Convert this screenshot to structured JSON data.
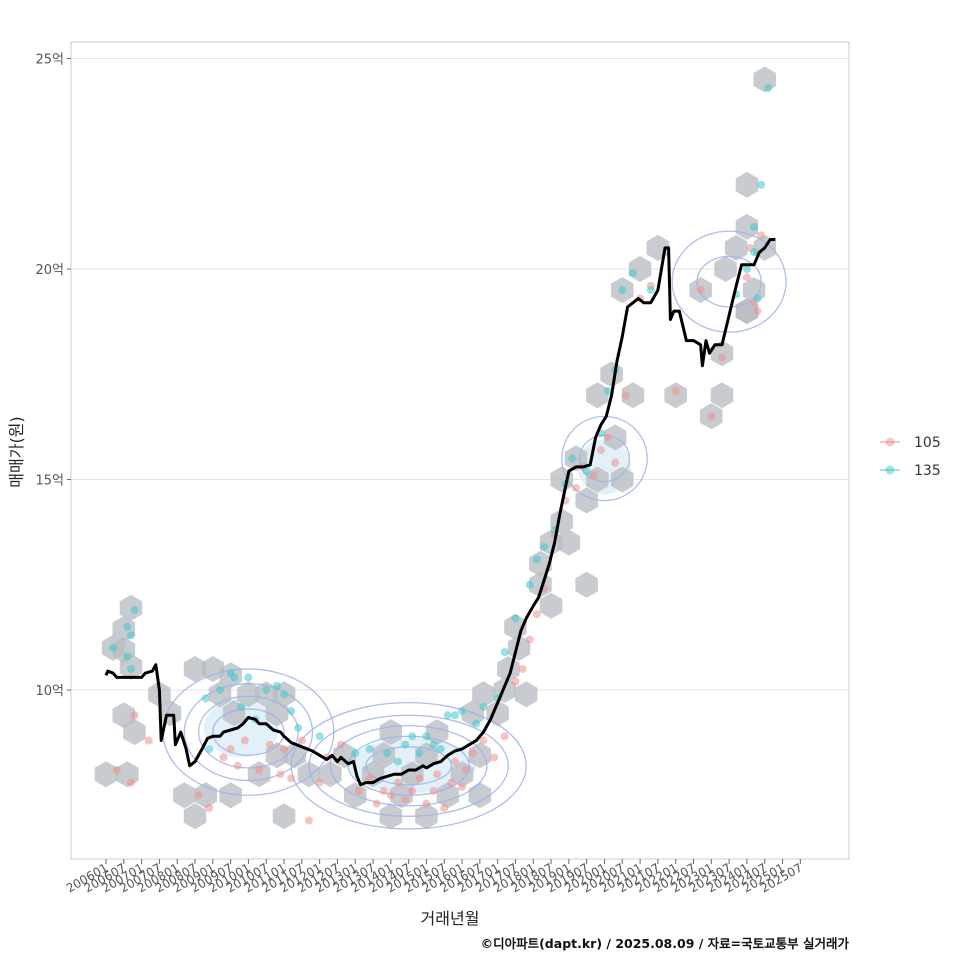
{
  "chart_data": {
    "type": "scatter",
    "title": "",
    "xlabel": "거래년월",
    "ylabel": "매매가(원)",
    "caption": "©디아파트(dapt.kr) / 2025.08.09 / 자료=국토교통부 실거래가",
    "y_unit_suffix": "억",
    "ylim": [
      6.2,
      25.5
    ],
    "y_ticks": [
      {
        "value": 10,
        "label": "10억"
      },
      {
        "value": 15,
        "label": "15억"
      },
      {
        "value": 20,
        "label": "20억"
      },
      {
        "value": 25,
        "label": "25억"
      }
    ],
    "x_range": [
      2006.0,
      2025.8
    ],
    "x_ticks": [
      "200601",
      "200607",
      "200701",
      "200707",
      "200801",
      "200807",
      "200901",
      "200907",
      "201001",
      "201007",
      "201101",
      "201107",
      "201201",
      "201207",
      "201301",
      "201307",
      "201401",
      "201407",
      "201501",
      "201507",
      "201601",
      "201607",
      "201701",
      "201707",
      "201801",
      "201807",
      "201901",
      "201907",
      "202001",
      "202007",
      "202101",
      "202107",
      "202201",
      "202207",
      "202301",
      "202307",
      "202401",
      "202407",
      "202501",
      "202507"
    ],
    "grid": true,
    "legend": {
      "placement": "right",
      "entries": [
        {
          "label": "105",
          "color": "#f08f8f"
        },
        {
          "label": "135",
          "color": "#3fc9cc"
        }
      ]
    },
    "colors": {
      "trend_line": "#000000",
      "hexbin": "#b8bcc2",
      "contour": "#9fb3ea",
      "density_fill": "#d6e9f5"
    },
    "trend_line": [
      [
        2006.0,
        10.35
      ],
      [
        2006.05,
        10.45
      ],
      [
        2006.2,
        10.4
      ],
      [
        2006.3,
        10.3
      ],
      [
        2006.5,
        10.3
      ],
      [
        2006.8,
        10.3
      ],
      [
        2007.0,
        10.3
      ],
      [
        2007.1,
        10.4
      ],
      [
        2007.3,
        10.45
      ],
      [
        2007.4,
        10.6
      ],
      [
        2007.5,
        10.0
      ],
      [
        2007.55,
        8.8
      ],
      [
        2007.7,
        9.4
      ],
      [
        2007.9,
        9.4
      ],
      [
        2007.95,
        8.7
      ],
      [
        2008.1,
        9.0
      ],
      [
        2008.25,
        8.6
      ],
      [
        2008.35,
        8.2
      ],
      [
        2008.5,
        8.3
      ],
      [
        2008.7,
        8.6
      ],
      [
        2008.85,
        8.85
      ],
      [
        2009.0,
        8.9
      ],
      [
        2009.2,
        8.9
      ],
      [
        2009.3,
        9.0
      ],
      [
        2009.5,
        9.05
      ],
      [
        2009.7,
        9.1
      ],
      [
        2009.85,
        9.2
      ],
      [
        2010.0,
        9.35
      ],
      [
        2010.2,
        9.3
      ],
      [
        2010.3,
        9.2
      ],
      [
        2010.5,
        9.2
      ],
      [
        2010.7,
        9.05
      ],
      [
        2010.9,
        9.0
      ],
      [
        2011.0,
        8.9
      ],
      [
        2011.2,
        8.75
      ],
      [
        2011.5,
        8.65
      ],
      [
        2011.8,
        8.55
      ],
      [
        2012.0,
        8.45
      ],
      [
        2012.2,
        8.35
      ],
      [
        2012.35,
        8.45
      ],
      [
        2012.5,
        8.3
      ],
      [
        2012.6,
        8.4
      ],
      [
        2012.8,
        8.25
      ],
      [
        2012.95,
        8.3
      ],
      [
        2013.05,
        7.95
      ],
      [
        2013.15,
        7.75
      ],
      [
        2013.3,
        7.8
      ],
      [
        2013.5,
        7.8
      ],
      [
        2013.7,
        7.9
      ],
      [
        2013.9,
        7.95
      ],
      [
        2014.1,
        8.0
      ],
      [
        2014.3,
        8.0
      ],
      [
        2014.5,
        8.1
      ],
      [
        2014.7,
        8.1
      ],
      [
        2014.9,
        8.2
      ],
      [
        2015.0,
        8.15
      ],
      [
        2015.2,
        8.25
      ],
      [
        2015.4,
        8.3
      ],
      [
        2015.6,
        8.45
      ],
      [
        2015.8,
        8.55
      ],
      [
        2016.0,
        8.6
      ],
      [
        2016.2,
        8.7
      ],
      [
        2016.4,
        8.8
      ],
      [
        2016.6,
        9.0
      ],
      [
        2016.8,
        9.3
      ],
      [
        2017.0,
        9.7
      ],
      [
        2017.2,
        10.1
      ],
      [
        2017.35,
        10.4
      ],
      [
        2017.5,
        10.9
      ],
      [
        2017.65,
        11.4
      ],
      [
        2017.8,
        11.7
      ],
      [
        2018.0,
        12.0
      ],
      [
        2018.15,
        12.2
      ],
      [
        2018.3,
        12.6
      ],
      [
        2018.45,
        13.0
      ],
      [
        2018.6,
        13.5
      ],
      [
        2018.75,
        14.2
      ],
      [
        2018.9,
        14.8
      ],
      [
        2019.0,
        15.2
      ],
      [
        2019.2,
        15.3
      ],
      [
        2019.4,
        15.3
      ],
      [
        2019.6,
        15.35
      ],
      [
        2019.75,
        16.0
      ],
      [
        2019.9,
        16.3
      ],
      [
        2020.05,
        16.5
      ],
      [
        2020.2,
        17.0
      ],
      [
        2020.35,
        17.8
      ],
      [
        2020.5,
        18.4
      ],
      [
        2020.65,
        19.1
      ],
      [
        2020.8,
        19.2
      ],
      [
        2020.95,
        19.3
      ],
      [
        2021.1,
        19.2
      ],
      [
        2021.3,
        19.2
      ],
      [
        2021.5,
        19.5
      ],
      [
        2021.7,
        20.5
      ],
      [
        2021.8,
        20.5
      ],
      [
        2021.85,
        18.8
      ],
      [
        2021.95,
        19.0
      ],
      [
        2022.1,
        19.0
      ],
      [
        2022.3,
        18.3
      ],
      [
        2022.5,
        18.3
      ],
      [
        2022.7,
        18.2
      ],
      [
        2022.75,
        17.7
      ],
      [
        2022.85,
        18.3
      ],
      [
        2022.95,
        18.0
      ],
      [
        2023.1,
        18.2
      ],
      [
        2023.3,
        18.2
      ],
      [
        2023.5,
        18.9
      ],
      [
        2023.7,
        19.6
      ],
      [
        2023.85,
        20.1
      ],
      [
        2024.0,
        20.1
      ],
      [
        2024.2,
        20.1
      ],
      [
        2024.35,
        20.4
      ],
      [
        2024.5,
        20.5
      ],
      [
        2024.65,
        20.7
      ],
      [
        2024.8,
        20.7
      ]
    ],
    "hexbins": [
      [
        2006.2,
        11.0
      ],
      [
        2006.5,
        11.45
      ],
      [
        2006.7,
        11.95
      ],
      [
        2006.5,
        10.95
      ],
      [
        2006.7,
        10.55
      ],
      [
        2006.0,
        8.0
      ],
      [
        2006.6,
        8.0
      ],
      [
        2006.5,
        9.4
      ],
      [
        2006.8,
        9.0
      ],
      [
        2007.5,
        9.9
      ],
      [
        2007.8,
        9.45
      ],
      [
        2008.5,
        10.5
      ],
      [
        2009.0,
        10.5
      ],
      [
        2009.5,
        10.35
      ],
      [
        2009.2,
        9.9
      ],
      [
        2009.6,
        9.45
      ],
      [
        2010.0,
        9.9
      ],
      [
        2010.5,
        9.9
      ],
      [
        2010.8,
        9.45
      ],
      [
        2011.0,
        9.9
      ],
      [
        2008.2,
        7.5
      ],
      [
        2008.5,
        7.0
      ],
      [
        2008.8,
        7.5
      ],
      [
        2009.5,
        7.5
      ],
      [
        2010.3,
        8.0
      ],
      [
        2010.8,
        8.45
      ],
      [
        2011.3,
        8.45
      ],
      [
        2011.0,
        7.0
      ],
      [
        2011.7,
        8.0
      ],
      [
        2012.3,
        8.0
      ],
      [
        2012.7,
        8.45
      ],
      [
        2013.0,
        7.5
      ],
      [
        2013.5,
        8.0
      ],
      [
        2013.8,
        8.45
      ],
      [
        2014.0,
        9.0
      ],
      [
        2014.3,
        7.5
      ],
      [
        2014.6,
        8.0
      ],
      [
        2014.0,
        7.0
      ],
      [
        2015.0,
        8.45
      ],
      [
        2015.3,
        9.0
      ],
      [
        2015.0,
        7.0
      ],
      [
        2015.6,
        7.5
      ],
      [
        2016.0,
        8.0
      ],
      [
        2016.5,
        8.45
      ],
      [
        2016.5,
        7.5
      ],
      [
        2016.3,
        9.45
      ],
      [
        2016.6,
        9.9
      ],
      [
        2017.0,
        9.45
      ],
      [
        2017.3,
        10.5
      ],
      [
        2017.6,
        11.0
      ],
      [
        2017.5,
        11.5
      ],
      [
        2017.2,
        10.0
      ],
      [
        2017.8,
        9.9
      ],
      [
        2018.2,
        13.0
      ],
      [
        2018.5,
        13.5
      ],
      [
        2018.8,
        14.0
      ],
      [
        2018.2,
        12.5
      ],
      [
        2018.5,
        12.0
      ],
      [
        2018.8,
        15.0
      ],
      [
        2019.2,
        15.5
      ],
      [
        2019.0,
        13.5
      ],
      [
        2019.5,
        14.5
      ],
      [
        2019.5,
        12.5
      ],
      [
        2019.8,
        15.0
      ],
      [
        2020.3,
        16.0
      ],
      [
        2019.8,
        17.0
      ],
      [
        2020.2,
        17.5
      ],
      [
        2020.5,
        15.0
      ],
      [
        2020.8,
        17.0
      ],
      [
        2020.5,
        19.5
      ],
      [
        2021.0,
        20.0
      ],
      [
        2021.5,
        20.5
      ],
      [
        2022.0,
        17.0
      ],
      [
        2022.7,
        19.5
      ],
      [
        2023.0,
        16.5
      ],
      [
        2023.3,
        17.0
      ],
      [
        2023.3,
        18.0
      ],
      [
        2023.4,
        20.0
      ],
      [
        2023.7,
        20.5
      ],
      [
        2024.0,
        21.0
      ],
      [
        2024.0,
        22.0
      ],
      [
        2024.2,
        19.5
      ],
      [
        2024.0,
        19.0
      ],
      [
        2024.0,
        19.0
      ],
      [
        2024.5,
        24.5
      ],
      [
        2024.5,
        20.5
      ]
    ],
    "density_fills": [
      [
        2009.8,
        9.1,
        1.05,
        0.7
      ],
      [
        2014.6,
        8.2,
        1.8,
        0.65
      ],
      [
        2020.0,
        15.3,
        0.75,
        0.65
      ]
    ],
    "contours": [
      [
        2010.0,
        9.0,
        1.0,
        0.55
      ],
      [
        2010.0,
        9.0,
        1.4,
        0.85
      ],
      [
        2010.0,
        9.0,
        1.8,
        1.15
      ],
      [
        2010.0,
        9.0,
        2.4,
        1.5
      ],
      [
        2014.5,
        8.2,
        1.2,
        0.45
      ],
      [
        2014.5,
        8.2,
        1.7,
        0.7
      ],
      [
        2014.5,
        8.2,
        2.2,
        0.95
      ],
      [
        2014.5,
        8.2,
        2.8,
        1.2
      ],
      [
        2014.5,
        8.2,
        3.3,
        1.5
      ],
      [
        2020.0,
        15.5,
        0.7,
        0.55
      ],
      [
        2020.0,
        15.5,
        1.2,
        1.0
      ],
      [
        2023.5,
        19.7,
        0.9,
        0.6
      ],
      [
        2023.5,
        19.7,
        1.6,
        1.2
      ]
    ],
    "series": [
      {
        "name": "105",
        "points": [
          [
            2006.3,
            8.1
          ],
          [
            2006.7,
            7.8
          ],
          [
            2006.8,
            9.4
          ],
          [
            2007.2,
            8.8
          ],
          [
            2008.6,
            7.5
          ],
          [
            2008.9,
            7.2
          ],
          [
            2009.3,
            8.4
          ],
          [
            2009.5,
            8.6
          ],
          [
            2009.7,
            8.2
          ],
          [
            2009.9,
            8.8
          ],
          [
            2010.3,
            8.1
          ],
          [
            2010.6,
            8.7
          ],
          [
            2010.9,
            8.0
          ],
          [
            2011.0,
            8.6
          ],
          [
            2011.2,
            7.9
          ],
          [
            2011.5,
            8.8
          ],
          [
            2011.7,
            6.9
          ],
          [
            2012.0,
            7.8
          ],
          [
            2012.2,
            8.4
          ],
          [
            2012.6,
            8.7
          ],
          [
            2013.1,
            7.6
          ],
          [
            2013.4,
            7.9
          ],
          [
            2013.6,
            7.3
          ],
          [
            2013.8,
            7.6
          ],
          [
            2014.0,
            7.5
          ],
          [
            2014.2,
            7.8
          ],
          [
            2014.4,
            7.4
          ],
          [
            2014.6,
            7.6
          ],
          [
            2014.8,
            7.9
          ],
          [
            2015.0,
            7.3
          ],
          [
            2015.2,
            7.6
          ],
          [
            2015.3,
            8.0
          ],
          [
            2015.5,
            7.2
          ],
          [
            2015.7,
            7.8
          ],
          [
            2015.8,
            8.3
          ],
          [
            2016.0,
            7.7
          ],
          [
            2016.1,
            8.1
          ],
          [
            2016.3,
            8.5
          ],
          [
            2016.6,
            8.8
          ],
          [
            2016.9,
            8.4
          ],
          [
            2017.2,
            8.9
          ],
          [
            2017.5,
            10.2
          ],
          [
            2017.7,
            10.5
          ],
          [
            2017.9,
            11.2
          ],
          [
            2018.1,
            11.8
          ],
          [
            2018.3,
            12.4
          ],
          [
            2018.6,
            13.7
          ],
          [
            2018.9,
            14.5
          ],
          [
            2019.2,
            14.8
          ],
          [
            2019.4,
            15.3
          ],
          [
            2019.7,
            15.1
          ],
          [
            2019.9,
            15.7
          ],
          [
            2020.1,
            16.0
          ],
          [
            2020.3,
            15.4
          ],
          [
            2020.6,
            17.0
          ],
          [
            2021.0,
            19.3
          ],
          [
            2021.3,
            19.6
          ],
          [
            2022.0,
            17.1
          ],
          [
            2022.7,
            19.5
          ],
          [
            2023.0,
            16.5
          ],
          [
            2023.3,
            17.9
          ],
          [
            2024.0,
            19.8
          ],
          [
            2024.1,
            20.5
          ],
          [
            2024.2,
            19.2
          ],
          [
            2024.4,
            20.8
          ],
          [
            2024.3,
            19.0
          ]
        ]
      },
      {
        "name": "135",
        "points": [
          [
            2006.2,
            11.0
          ],
          [
            2006.6,
            11.5
          ],
          [
            2006.7,
            11.3
          ],
          [
            2006.8,
            11.9
          ],
          [
            2006.6,
            10.8
          ],
          [
            2006.7,
            10.5
          ],
          [
            2008.8,
            9.8
          ],
          [
            2008.9,
            8.6
          ],
          [
            2009.2,
            10.0
          ],
          [
            2009.5,
            10.4
          ],
          [
            2009.6,
            10.3
          ],
          [
            2009.8,
            9.6
          ],
          [
            2010.0,
            10.3
          ],
          [
            2010.2,
            9.3
          ],
          [
            2010.5,
            10.0
          ],
          [
            2010.8,
            10.1
          ],
          [
            2011.0,
            9.9
          ],
          [
            2011.2,
            9.5
          ],
          [
            2011.4,
            9.1
          ],
          [
            2012.0,
            8.9
          ],
          [
            2013.0,
            8.5
          ],
          [
            2013.4,
            8.6
          ],
          [
            2013.9,
            8.5
          ],
          [
            2014.2,
            8.3
          ],
          [
            2014.4,
            8.7
          ],
          [
            2014.6,
            8.9
          ],
          [
            2014.8,
            8.5
          ],
          [
            2015.0,
            8.9
          ],
          [
            2015.2,
            8.7
          ],
          [
            2015.4,
            8.6
          ],
          [
            2015.6,
            9.4
          ],
          [
            2015.8,
            9.4
          ],
          [
            2016.0,
            9.5
          ],
          [
            2016.4,
            9.2
          ],
          [
            2016.6,
            9.6
          ],
          [
            2017.0,
            9.8
          ],
          [
            2017.2,
            10.9
          ],
          [
            2017.5,
            11.7
          ],
          [
            2017.9,
            12.5
          ],
          [
            2018.1,
            13.1
          ],
          [
            2018.3,
            13.4
          ],
          [
            2018.6,
            13.8
          ],
          [
            2018.9,
            14.9
          ],
          [
            2019.1,
            15.5
          ],
          [
            2019.5,
            15.2
          ],
          [
            2019.9,
            16.1
          ],
          [
            2020.1,
            17.1
          ],
          [
            2020.3,
            17.6
          ],
          [
            2020.5,
            19.5
          ],
          [
            2020.8,
            19.9
          ],
          [
            2021.3,
            19.5
          ],
          [
            2023.7,
            19.4
          ],
          [
            2024.0,
            20.0
          ],
          [
            2024.2,
            20.4
          ],
          [
            2024.3,
            19.3
          ],
          [
            2024.4,
            22.0
          ],
          [
            2024.6,
            24.3
          ],
          [
            2024.2,
            21.0
          ]
        ]
      }
    ]
  }
}
